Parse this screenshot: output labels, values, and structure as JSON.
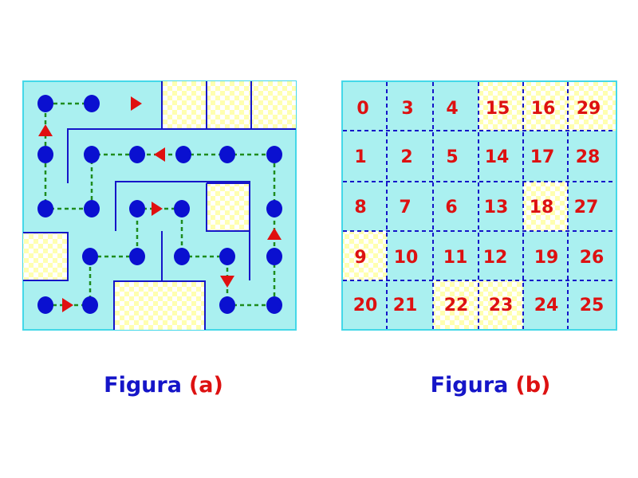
{
  "colors": {
    "cell": "#aaf0f0",
    "border": "#44d8e8",
    "wall": "#1515c8",
    "dot": "#0a10d0",
    "path": "#1e8c1e",
    "arrow": "#e01010",
    "checker_a": "#ffffff",
    "checker_b": "#ffffb0",
    "number": "#dd1111",
    "caption_word": "#1515c8",
    "caption_letter": "#dd1111"
  },
  "figure_a": {
    "caption": {
      "word": "Figura",
      "letter": "(a)"
    },
    "path_order": [
      [
        5,
        0
      ],
      [
        5,
        1
      ],
      [
        4,
        1
      ],
      [
        4,
        0
      ],
      [
        3,
        0
      ],
      [
        2,
        0
      ],
      [
        2,
        1
      ],
      [
        1,
        1
      ],
      [
        1,
        2
      ],
      [
        1,
        3
      ],
      [
        1,
        4
      ],
      [
        1,
        5
      ],
      [
        2,
        5
      ],
      [
        3,
        5
      ],
      [
        4,
        5
      ],
      [
        4,
        4
      ],
      [
        3,
        4
      ],
      [
        3,
        3
      ],
      [
        2,
        3
      ],
      [
        2,
        2
      ],
      [
        3,
        2
      ],
      [
        4,
        2
      ],
      [
        4,
        3
      ],
      [
        3,
        3
      ]
    ],
    "obstacle_cells": [
      [
        0,
        3
      ],
      [
        0,
        4
      ],
      [
        0,
        5
      ],
      [
        2,
        4
      ],
      [
        3,
        0
      ],
      [
        4,
        2
      ],
      [
        4,
        3
      ]
    ]
  },
  "figure_b": {
    "caption": {
      "word": "Figura",
      "letter": "(b)"
    },
    "grid": [
      [
        0,
        3,
        4,
        15,
        16,
        29
      ],
      [
        1,
        2,
        5,
        14,
        17,
        28
      ],
      [
        8,
        7,
        6,
        13,
        18,
        27
      ],
      [
        9,
        10,
        11,
        12,
        19,
        26
      ],
      [
        20,
        21,
        22,
        23,
        24,
        25
      ]
    ],
    "highlighted": [
      [
        0,
        3
      ],
      [
        0,
        4
      ],
      [
        0,
        5
      ],
      [
        2,
        4
      ],
      [
        3,
        0
      ],
      [
        4,
        2
      ],
      [
        4,
        3
      ]
    ]
  }
}
